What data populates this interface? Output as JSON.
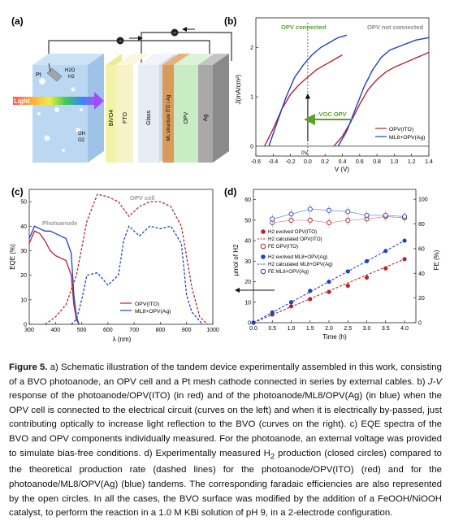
{
  "panel_labels": {
    "a": "(a)",
    "b": "(b)",
    "c": "(c)",
    "d": "(d)"
  },
  "colors": {
    "red": "#b5252b",
    "blue": "#1f3fcf",
    "gray": "#9a9a9a",
    "green": "#5aa02c"
  },
  "panel_a": {
    "light": "Light",
    "pt": "Pt",
    "h2o": "H2O",
    "h2": "H2",
    "oh": "OH",
    "o2": "O2",
    "layers": [
      "BiVO4",
      "FTO",
      "Glass",
      "ML structure ITO / Ag",
      "OPV",
      "Ag"
    ],
    "electron_icon": "electron-icon"
  },
  "panel_b": {
    "title_connected": "OPV connected",
    "title_not_connected": "OPV not connected",
    "ylabel": "J(mA/cm²)",
    "xlabel": "V (V)",
    "voc_label": "-VOC OPV",
    "zero_v": "0V",
    "xticks": [
      "-0.6",
      "-0.4",
      "-0.2",
      "0.0",
      "0.2",
      "0.4",
      "0.6",
      "0.8",
      "1.0",
      "1.2",
      "1.4"
    ],
    "yticks": [
      "0",
      "1",
      "2"
    ],
    "legend": [
      "OPV(ITO)",
      "ML8+OPV(Ag)"
    ]
  },
  "panel_c": {
    "ylabel": "EQE (%)",
    "xlabel": "λ (nm)",
    "opv_cell": "OPV cell",
    "photoanode": "Photoanode",
    "xticks": [
      "300",
      "400",
      "500",
      "600",
      "700",
      "800",
      "900",
      "1000"
    ],
    "yticks": [
      "0",
      "10",
      "20",
      "30",
      "40",
      "50"
    ],
    "legend": [
      "OPV(ITO)",
      "ML8+OPV(Ag)"
    ]
  },
  "panel_d": {
    "ylabel": "μmol of H2",
    "ylabel_right": "FE (%)",
    "xlabel": "Time (h)",
    "xticks": [
      "0.0",
      "0.5",
      "1.0",
      "1.5",
      "2.0",
      "2.5",
      "3.0",
      "3.5",
      "4.0"
    ],
    "yticks": [
      "0",
      "10",
      "20",
      "30",
      "40",
      "50",
      "60"
    ],
    "yticks_right": [
      "0",
      "20",
      "40",
      "60",
      "80",
      "100"
    ],
    "legend": [
      "H2 evolved OPV(ITO)",
      "H2 calculated OPV(ITO)",
      "FE OPV(ITO)",
      "H2 evolved ML8+OPV(Ag)",
      "H2 calculated ML8+OPV(Ag)",
      "FE ML8+OPV(Ag)"
    ]
  },
  "chart_data": [
    {
      "panel": "b",
      "type": "line",
      "xlabel": "V (V)",
      "ylabel": "J(mA/cm²)",
      "xlim": [
        -0.6,
        1.4
      ],
      "ylim": [
        -0.2,
        2.6
      ],
      "series": [
        {
          "name": "OPV(ITO)",
          "group": "connected",
          "x": [
            -0.5,
            -0.4,
            -0.3,
            -0.2,
            -0.1,
            0.0,
            0.1,
            0.2,
            0.3,
            0.4
          ],
          "y": [
            0.0,
            0.35,
            0.75,
            1.05,
            1.25,
            1.4,
            1.55,
            1.65,
            1.75,
            1.85
          ]
        },
        {
          "name": "ML8+OPV(Ag)",
          "group": "connected",
          "x": [
            -0.45,
            -0.35,
            -0.25,
            -0.15,
            -0.05,
            0.05,
            0.15,
            0.25,
            0.35,
            0.45
          ],
          "y": [
            0.0,
            0.5,
            1.0,
            1.4,
            1.65,
            1.85,
            2.0,
            2.1,
            2.2,
            2.25
          ]
        },
        {
          "name": "OPV(ITO)",
          "group": "not connected",
          "x": [
            0.3,
            0.4,
            0.5,
            0.6,
            0.7,
            0.8,
            0.9,
            1.0,
            1.2,
            1.4
          ],
          "y": [
            0.0,
            0.2,
            0.5,
            0.85,
            1.15,
            1.35,
            1.5,
            1.6,
            1.75,
            1.9
          ]
        },
        {
          "name": "ML8+OPV(Ag)",
          "group": "not connected",
          "x": [
            0.35,
            0.45,
            0.55,
            0.65,
            0.75,
            0.85,
            0.95,
            1.1,
            1.25,
            1.4
          ],
          "y": [
            0.0,
            0.3,
            0.75,
            1.2,
            1.55,
            1.8,
            1.95,
            2.05,
            2.15,
            2.2
          ]
        }
      ]
    },
    {
      "panel": "c",
      "type": "line",
      "xlabel": "λ (nm)",
      "ylabel": "EQE (%)",
      "xlim": [
        300,
        1000
      ],
      "ylim": [
        0,
        55
      ],
      "series": [
        {
          "name": "OPV(ITO)",
          "kind": "photoanode",
          "x": [
            300,
            320,
            340,
            360,
            380,
            400,
            420,
            440,
            460,
            470,
            480,
            490
          ],
          "y": [
            33,
            38,
            37,
            34,
            30,
            28,
            27,
            26,
            20,
            8,
            2,
            0
          ]
        },
        {
          "name": "ML8+OPV(Ag)",
          "kind": "photoanode",
          "x": [
            300,
            320,
            340,
            360,
            380,
            400,
            420,
            440,
            460,
            470,
            480,
            490
          ],
          "y": [
            35,
            40,
            39,
            38,
            38,
            37,
            36,
            35,
            29,
            12,
            3,
            0
          ]
        },
        {
          "name": "OPV(ITO)",
          "kind": "OPV cell",
          "x": [
            360,
            400,
            440,
            480,
            520,
            560,
            600,
            640,
            680,
            720,
            760,
            800,
            840,
            880,
            920,
            950,
            980
          ],
          "y": [
            0,
            3,
            8,
            20,
            42,
            53,
            52,
            50,
            44,
            48,
            50,
            50,
            48,
            40,
            15,
            3,
            0
          ]
        },
        {
          "name": "ML8+OPV(Ag)",
          "kind": "OPV cell",
          "x": [
            460,
            480,
            500,
            520,
            560,
            600,
            640,
            660,
            680,
            720,
            760,
            800,
            840,
            880,
            900,
            920,
            960
          ],
          "y": [
            0,
            2,
            10,
            20,
            21,
            16,
            20,
            34,
            40,
            36,
            40,
            39,
            40,
            33,
            12,
            5,
            0
          ]
        }
      ]
    },
    {
      "panel": "d",
      "type": "scatter",
      "xlabel": "Time (h)",
      "ylabel": "μmol of H2",
      "ylabel_right": "FE (%)",
      "xlim": [
        0,
        4.3
      ],
      "ylim": [
        0,
        65
      ],
      "ylim_right": [
        0,
        108
      ],
      "series": [
        {
          "name": "H2 evolved OPV(ITO)",
          "x": [
            0,
            0.5,
            1,
            1.5,
            2,
            2.5,
            3,
            3.5,
            4
          ],
          "y": [
            0,
            4,
            8,
            11.5,
            15,
            18,
            22,
            26.5,
            31
          ]
        },
        {
          "name": "H2 calculated OPV(ITO)",
          "x": [
            0,
            4
          ],
          "y": [
            0,
            31
          ]
        },
        {
          "name": "FE OPV(ITO)",
          "axis": "right",
          "x": [
            0.5,
            1,
            1.5,
            2,
            2.5,
            3,
            3.5,
            4
          ],
          "y": [
            81,
            83,
            83,
            81,
            83,
            84,
            86,
            85
          ]
        },
        {
          "name": "H2 evolved ML8+OPV(Ag)",
          "x": [
            0,
            0.5,
            1,
            1.5,
            2,
            2.5,
            3,
            3.5,
            4
          ],
          "y": [
            0,
            5,
            10,
            15.5,
            20,
            25,
            30,
            35,
            40
          ]
        },
        {
          "name": "H2 calculated ML8+OPV(Ag)",
          "x": [
            0,
            4
          ],
          "y": [
            0,
            40
          ]
        },
        {
          "name": "FE ML8+OPV(Ag)",
          "axis": "right",
          "x": [
            0.5,
            1,
            1.5,
            2,
            2.5,
            3,
            3.5,
            4
          ],
          "y": [
            84,
            88,
            92,
            91,
            90,
            87,
            87,
            86
          ]
        }
      ]
    }
  ]
}
